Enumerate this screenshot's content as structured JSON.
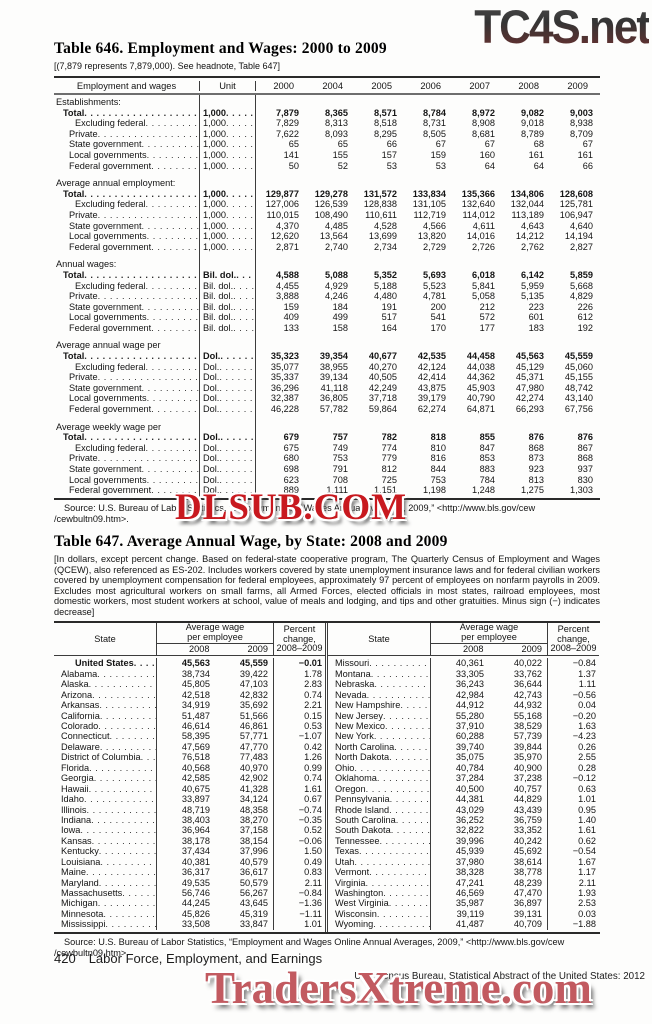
{
  "watermarks": {
    "top_right": "TC4S.net",
    "middle": "DLSUB.COM",
    "bottom": "TradersXtreme.com"
  },
  "table646": {
    "title": "Table 646. Employment and Wages: 2000 to 2009",
    "headnote": "[(7,879 represents 7,879,000). See headnote, Table 647]",
    "col_label": "Employment and wages",
    "col_unit": "Unit",
    "years": [
      "2000",
      "2004",
      "2005",
      "2006",
      "2007",
      "2008",
      "2009"
    ],
    "sections": [
      {
        "heading": "Establishments:",
        "unit": "1,000",
        "rows": [
          {
            "label": "Total",
            "bold": true,
            "indent": 1,
            "values": [
              "7,879",
              "8,365",
              "8,571",
              "8,784",
              "8,972",
              "9,082",
              "9,003"
            ]
          },
          {
            "label": "Excluding federal",
            "indent": 2,
            "values": [
              "7,829",
              "8,313",
              "8,518",
              "8,731",
              "8,908",
              "9,018",
              "8,938"
            ]
          },
          {
            "label": "Private",
            "indent": 1.5,
            "values": [
              "7,622",
              "8,093",
              "8,295",
              "8,505",
              "8,681",
              "8,789",
              "8,709"
            ]
          },
          {
            "label": "State government",
            "indent": 1.5,
            "values": [
              "65",
              "65",
              "66",
              "67",
              "67",
              "68",
              "67"
            ]
          },
          {
            "label": "Local governments",
            "indent": 1.5,
            "values": [
              "141",
              "155",
              "157",
              "159",
              "160",
              "161",
              "161"
            ]
          },
          {
            "label": "Federal government",
            "indent": 1.5,
            "values": [
              "50",
              "52",
              "53",
              "53",
              "64",
              "64",
              "66"
            ]
          }
        ]
      },
      {
        "heading": "Average annual employment:",
        "unit": "1,000",
        "rows": [
          {
            "label": "Total",
            "bold": true,
            "indent": 1,
            "values": [
              "129,877",
              "129,278",
              "131,572",
              "133,834",
              "135,366",
              "134,806",
              "128,608"
            ]
          },
          {
            "label": "Excluding federal",
            "indent": 2,
            "values": [
              "127,006",
              "126,539",
              "128,838",
              "131,105",
              "132,640",
              "132,044",
              "125,781"
            ]
          },
          {
            "label": "Private",
            "indent": 1.5,
            "values": [
              "110,015",
              "108,490",
              "110,611",
              "112,719",
              "114,012",
              "113,189",
              "106,947"
            ]
          },
          {
            "label": "State government",
            "indent": 1.5,
            "values": [
              "4,370",
              "4,485",
              "4,528",
              "4,566",
              "4,611",
              "4,643",
              "4,640"
            ]
          },
          {
            "label": "Local governments",
            "indent": 1.5,
            "values": [
              "12,620",
              "13,564",
              "13,699",
              "13,820",
              "14,016",
              "14,212",
              "14,194"
            ]
          },
          {
            "label": "Federal government",
            "indent": 1.5,
            "values": [
              "2,871",
              "2,740",
              "2,734",
              "2,729",
              "2,726",
              "2,762",
              "2,827"
            ]
          }
        ]
      },
      {
        "heading": "Annual wages:",
        "unit": "Bil. dol.",
        "rows": [
          {
            "label": "Total",
            "bold": true,
            "indent": 1,
            "values": [
              "4,588",
              "5,088",
              "5,352",
              "5,693",
              "6,018",
              "6,142",
              "5,859"
            ]
          },
          {
            "label": "Excluding federal",
            "indent": 2,
            "values": [
              "4,455",
              "4,929",
              "5,188",
              "5,523",
              "5,841",
              "5,959",
              "5,668"
            ]
          },
          {
            "label": "Private",
            "indent": 1.5,
            "values": [
              "3,888",
              "4,246",
              "4,480",
              "4,781",
              "5,058",
              "5,135",
              "4,829"
            ]
          },
          {
            "label": "State government",
            "indent": 1.5,
            "values": [
              "159",
              "184",
              "191",
              "200",
              "212",
              "223",
              "226"
            ]
          },
          {
            "label": "Local governments",
            "indent": 1.5,
            "values": [
              "409",
              "499",
              "517",
              "541",
              "572",
              "601",
              "612"
            ]
          },
          {
            "label": "Federal government",
            "indent": 1.5,
            "values": [
              "133",
              "158",
              "164",
              "170",
              "177",
              "183",
              "192"
            ]
          }
        ]
      },
      {
        "heading": "Average annual wage per employee:",
        "unit": "Dol.",
        "rows": [
          {
            "label": "Total",
            "bold": true,
            "indent": 1,
            "values": [
              "35,323",
              "39,354",
              "40,677",
              "42,535",
              "44,458",
              "45,563",
              "45,559"
            ]
          },
          {
            "label": "Excluding federal",
            "indent": 2,
            "values": [
              "35,077",
              "38,955",
              "40,270",
              "42,124",
              "44,038",
              "45,129",
              "45,060"
            ]
          },
          {
            "label": "Private",
            "indent": 1.5,
            "values": [
              "35,337",
              "39,134",
              "40,505",
              "42,414",
              "44,362",
              "45,371",
              "45,155"
            ]
          },
          {
            "label": "State government",
            "indent": 1.5,
            "values": [
              "36,296",
              "41,118",
              "42,249",
              "43,875",
              "45,903",
              "47,980",
              "48,742"
            ]
          },
          {
            "label": "Local governments",
            "indent": 1.5,
            "values": [
              "32,387",
              "36,805",
              "37,718",
              "39,179",
              "40,790",
              "42,274",
              "43,140"
            ]
          },
          {
            "label": "Federal government",
            "indent": 1.5,
            "values": [
              "46,228",
              "57,782",
              "59,864",
              "62,274",
              "64,871",
              "66,293",
              "67,756"
            ]
          }
        ]
      },
      {
        "heading": "Average weekly wage per employee:",
        "unit": "Dol.",
        "rows": [
          {
            "label": "Total",
            "bold": true,
            "indent": 1,
            "values": [
              "679",
              "757",
              "782",
              "818",
              "855",
              "876",
              "876"
            ]
          },
          {
            "label": "Excluding federal",
            "indent": 2,
            "values": [
              "675",
              "749",
              "774",
              "810",
              "847",
              "868",
              "867"
            ]
          },
          {
            "label": "Private",
            "indent": 1.5,
            "values": [
              "680",
              "753",
              "779",
              "816",
              "853",
              "873",
              "868"
            ]
          },
          {
            "label": "State government",
            "indent": 1.5,
            "values": [
              "698",
              "791",
              "812",
              "844",
              "883",
              "923",
              "937"
            ]
          },
          {
            "label": "Local governments",
            "indent": 1.5,
            "values": [
              "623",
              "708",
              "725",
              "753",
              "784",
              "813",
              "830"
            ]
          },
          {
            "label": "Federal government",
            "indent": 1.5,
            "values": [
              "889",
              "1,111",
              "1,151",
              "1,198",
              "1,248",
              "1,275",
              "1,303"
            ]
          }
        ]
      }
    ],
    "source_line1": "Source: U.S. Bureau of Labor Statistics, “Employment and Wages Annual Averages, 2009,” <http://www.bls.gov/cew",
    "source_line2": "/cewbultn09.htm>."
  },
  "table647": {
    "title": "Table 647. Average Annual Wage, by State: 2008 and 2009",
    "headnote": "[In dollars, except percent change. Based on federal-state cooperative program, The Quarterly Census of Employment and Wages (QCEW), also referenced as ES-202. Includes workers covered by state unemployment insurance laws and for federal civilian workers covered by unemployment compensation for federal employees, approximately 97 percent of employees on nonfarm payrolls in 2009. Excludes most agricultural workers on small farms, all Armed Forces, elected officials in most states, railroad employees, most domestic workers, most student workers at school, value of meals and lodging, and tips and other gratuities. Minus sign (−) indicates decrease]",
    "header": {
      "state": "State",
      "avg1": "Average wage",
      "avg2": "per employee",
      "y2008": "2008",
      "y2009": "2009",
      "pct1": "Percent",
      "pct2": "change,",
      "pct3": "2008–2009"
    },
    "left_rows": [
      {
        "state": "United States",
        "bold": true,
        "w2008": "45,563",
        "w2009": "45,559",
        "pct": "−0.01"
      },
      {
        "state": "Alabama",
        "w2008": "38,734",
        "w2009": "39,422",
        "pct": "1.78"
      },
      {
        "state": "Alaska",
        "w2008": "45,805",
        "w2009": "47,103",
        "pct": "2.83"
      },
      {
        "state": "Arizona",
        "w2008": "42,518",
        "w2009": "42,832",
        "pct": "0.74"
      },
      {
        "state": "Arkansas",
        "w2008": "34,919",
        "w2009": "35,692",
        "pct": "2.21"
      },
      {
        "state": "California",
        "w2008": "51,487",
        "w2009": "51,566",
        "pct": "0.15"
      },
      {
        "state": "Colorado",
        "w2008": "46,614",
        "w2009": "46,861",
        "pct": "0.53"
      },
      {
        "state": "Connecticut",
        "w2008": "58,395",
        "w2009": "57,771",
        "pct": "−1.07"
      },
      {
        "state": "Delaware",
        "w2008": "47,569",
        "w2009": "47,770",
        "pct": "0.42"
      },
      {
        "state": "District of Columbia",
        "w2008": "76,518",
        "w2009": "77,483",
        "pct": "1.26"
      },
      {
        "state": "Florida",
        "w2008": "40,568",
        "w2009": "40,970",
        "pct": "0.99"
      },
      {
        "state": "Georgia",
        "w2008": "42,585",
        "w2009": "42,902",
        "pct": "0.74"
      },
      {
        "state": "Hawaii",
        "w2008": "40,675",
        "w2009": "41,328",
        "pct": "1.61"
      },
      {
        "state": "Idaho",
        "w2008": "33,897",
        "w2009": "34,124",
        "pct": "0.67"
      },
      {
        "state": "Illinois",
        "w2008": "48,719",
        "w2009": "48,358",
        "pct": "−0.74"
      },
      {
        "state": "Indiana",
        "w2008": "38,403",
        "w2009": "38,270",
        "pct": "−0.35"
      },
      {
        "state": "Iowa",
        "w2008": "36,964",
        "w2009": "37,158",
        "pct": "0.52"
      },
      {
        "state": "Kansas",
        "w2008": "38,178",
        "w2009": "38,154",
        "pct": "−0.06"
      },
      {
        "state": "Kentucky",
        "w2008": "37,434",
        "w2009": "37,996",
        "pct": "1.50"
      },
      {
        "state": "Louisiana",
        "w2008": "40,381",
        "w2009": "40,579",
        "pct": "0.49"
      },
      {
        "state": "Maine",
        "w2008": "36,317",
        "w2009": "36,617",
        "pct": "0.83"
      },
      {
        "state": "Maryland",
        "w2008": "49,535",
        "w2009": "50,579",
        "pct": "2.11"
      },
      {
        "state": "Massachusetts",
        "w2008": "56,746",
        "w2009": "56,267",
        "pct": "−0.84"
      },
      {
        "state": "Michigan",
        "w2008": "44,245",
        "w2009": "43,645",
        "pct": "−1.36"
      },
      {
        "state": "Minnesota",
        "w2008": "45,826",
        "w2009": "45,319",
        "pct": "−1.11"
      },
      {
        "state": "Mississippi",
        "w2008": "33,508",
        "w2009": "33,847",
        "pct": "1.01"
      }
    ],
    "right_rows": [
      {
        "state": "Missouri",
        "w2008": "40,361",
        "w2009": "40,022",
        "pct": "−0.84"
      },
      {
        "state": "Montana",
        "w2008": "33,305",
        "w2009": "33,762",
        "pct": "1.37"
      },
      {
        "state": "Nebraska",
        "w2008": "36,243",
        "w2009": "36,644",
        "pct": "1.11"
      },
      {
        "state": "Nevada",
        "w2008": "42,984",
        "w2009": "42,743",
        "pct": "−0.56"
      },
      {
        "state": "New Hampshire",
        "w2008": "44,912",
        "w2009": "44,932",
        "pct": "0.04"
      },
      {
        "state": "New Jersey",
        "w2008": "55,280",
        "w2009": "55,168",
        "pct": "−0.20"
      },
      {
        "state": "New Mexico",
        "w2008": "37,910",
        "w2009": "38,529",
        "pct": "1.63"
      },
      {
        "state": "New York",
        "w2008": "60,288",
        "w2009": "57,739",
        "pct": "−4.23"
      },
      {
        "state": "North Carolina",
        "w2008": "39,740",
        "w2009": "39,844",
        "pct": "0.26"
      },
      {
        "state": "North Dakota",
        "w2008": "35,075",
        "w2009": "35,970",
        "pct": "2.55"
      },
      {
        "state": "Ohio",
        "w2008": "40,784",
        "w2009": "40,900",
        "pct": "0.28"
      },
      {
        "state": "Oklahoma",
        "w2008": "37,284",
        "w2009": "37,238",
        "pct": "−0.12"
      },
      {
        "state": "Oregon",
        "w2008": "40,500",
        "w2009": "40,757",
        "pct": "0.63"
      },
      {
        "state": "Pennsylvania",
        "w2008": "44,381",
        "w2009": "44,829",
        "pct": "1.01"
      },
      {
        "state": "Rhode Island",
        "w2008": "43,029",
        "w2009": "43,439",
        "pct": "0.95"
      },
      {
        "state": "South Carolina",
        "w2008": "36,252",
        "w2009": "36,759",
        "pct": "1.40"
      },
      {
        "state": "South Dakota",
        "w2008": "32,822",
        "w2009": "33,352",
        "pct": "1.61"
      },
      {
        "state": "Tennessee",
        "w2008": "39,996",
        "w2009": "40,242",
        "pct": "0.62"
      },
      {
        "state": "Texas",
        "w2008": "45,939",
        "w2009": "45,692",
        "pct": "−0.54"
      },
      {
        "state": "Utah",
        "w2008": "37,980",
        "w2009": "38,614",
        "pct": "1.67"
      },
      {
        "state": "Vermont",
        "w2008": "38,328",
        "w2009": "38,778",
        "pct": "1.17"
      },
      {
        "state": "Virginia",
        "w2008": "47,241",
        "w2009": "48,239",
        "pct": "2.11"
      },
      {
        "state": "Washington",
        "w2008": "46,569",
        "w2009": "47,470",
        "pct": "1.93"
      },
      {
        "state": "West Virginia",
        "w2008": "35,987",
        "w2009": "36,897",
        "pct": "2.53"
      },
      {
        "state": "Wisconsin",
        "w2008": "39,119",
        "w2009": "39,131",
        "pct": "0.03"
      },
      {
        "state": "Wyoming",
        "w2008": "41,487",
        "w2009": "40,709",
        "pct": "−1.88"
      }
    ],
    "source_line1": "Source: U.S. Bureau of Labor Statistics, “Employment and Wages Online Annual Averages, 2009,” <http://www.bls.gov/cew",
    "source_line2": "/cewbultn09.htm>."
  },
  "footer": {
    "page_number": "420",
    "section_title": "Labor Force, Employment, and Earnings",
    "credit": "U.S. Census Bureau, Statistical Abstract of the United States: 2012"
  }
}
